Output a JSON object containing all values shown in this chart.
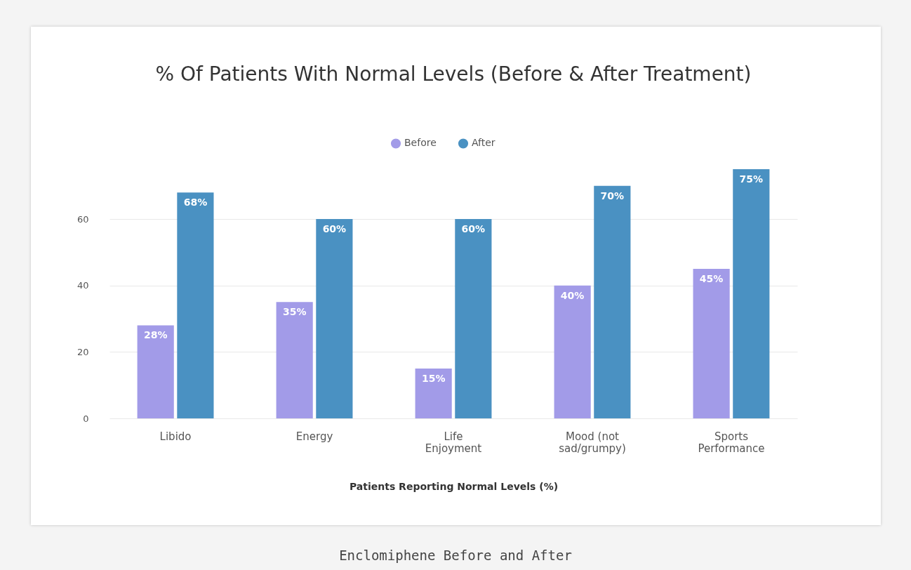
{
  "chart_data": {
    "type": "bar",
    "title": "% Of Patients With Normal Levels (Before & After Treatment)",
    "xlabel": "Patients Reporting Normal Levels (%)",
    "categories": [
      "Libido",
      "Energy",
      "Life Enjoyment",
      "Mood (not sad/grumpy)",
      "Sports Performance"
    ],
    "series": [
      {
        "name": "Before",
        "color": "#a29be8",
        "values": [
          28,
          35,
          15,
          40,
          45
        ],
        "value_labels": [
          "28%",
          "35%",
          "15%",
          "40%",
          "45%"
        ]
      },
      {
        "name": "After",
        "color": "#4a91c2",
        "values": [
          68,
          60,
          60,
          70,
          75
        ],
        "value_labels": [
          "68%",
          "60%",
          "60%",
          "70%",
          "75%"
        ]
      }
    ],
    "ylim": [
      0,
      75
    ],
    "yticks": [
      0,
      20,
      40,
      60
    ],
    "grid": "y",
    "legend": "top",
    "marker": "circle",
    "annotations": [
      "Enclomiphene Before and After"
    ]
  }
}
